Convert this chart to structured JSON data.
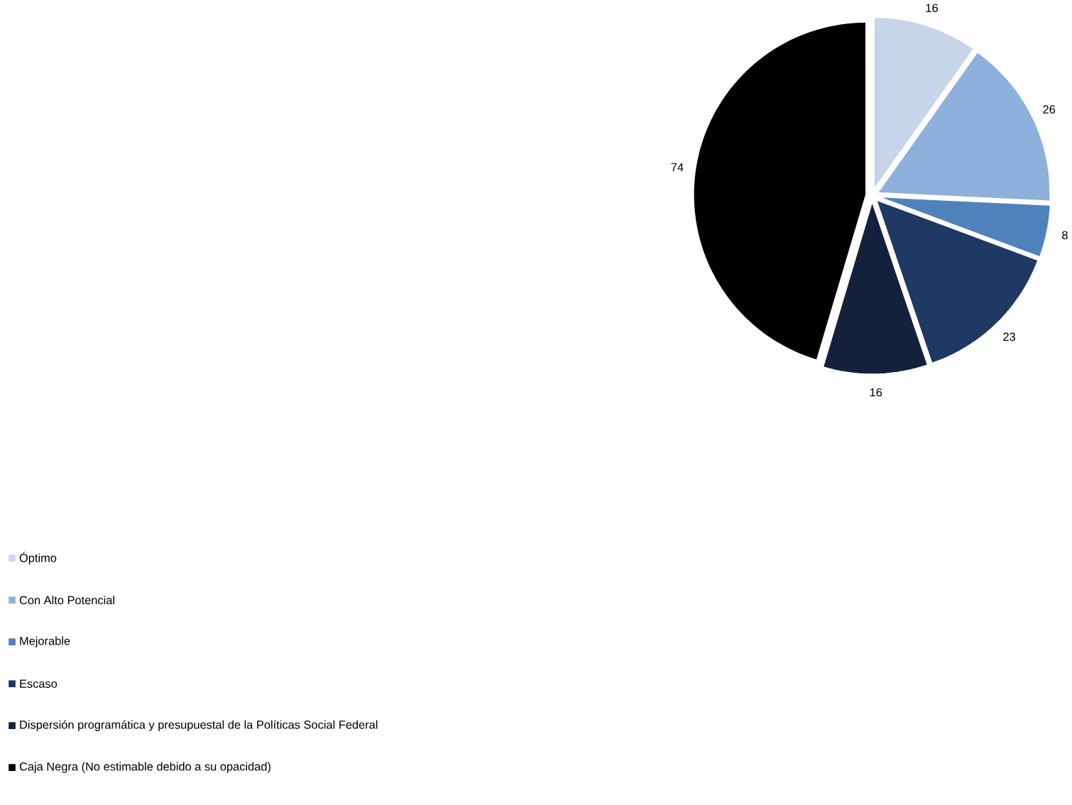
{
  "chart_data": {
    "type": "pie",
    "categories": [
      "Óptimo",
      "Con Alto Potencial",
      "Mejorable",
      "Escaso",
      "Dispersión programática y presupuestal de la Políticas Social Federal",
      "Caja Negra (No estimable debido a su opacidad)"
    ],
    "values": [
      16,
      26,
      8,
      23,
      16,
      74
    ],
    "colors": [
      "#c6d5ea",
      "#8eb0dc",
      "#4f81bd",
      "#1f3864",
      "#14213d",
      "#000000"
    ],
    "data_labels": true,
    "legend": "bottom left"
  }
}
